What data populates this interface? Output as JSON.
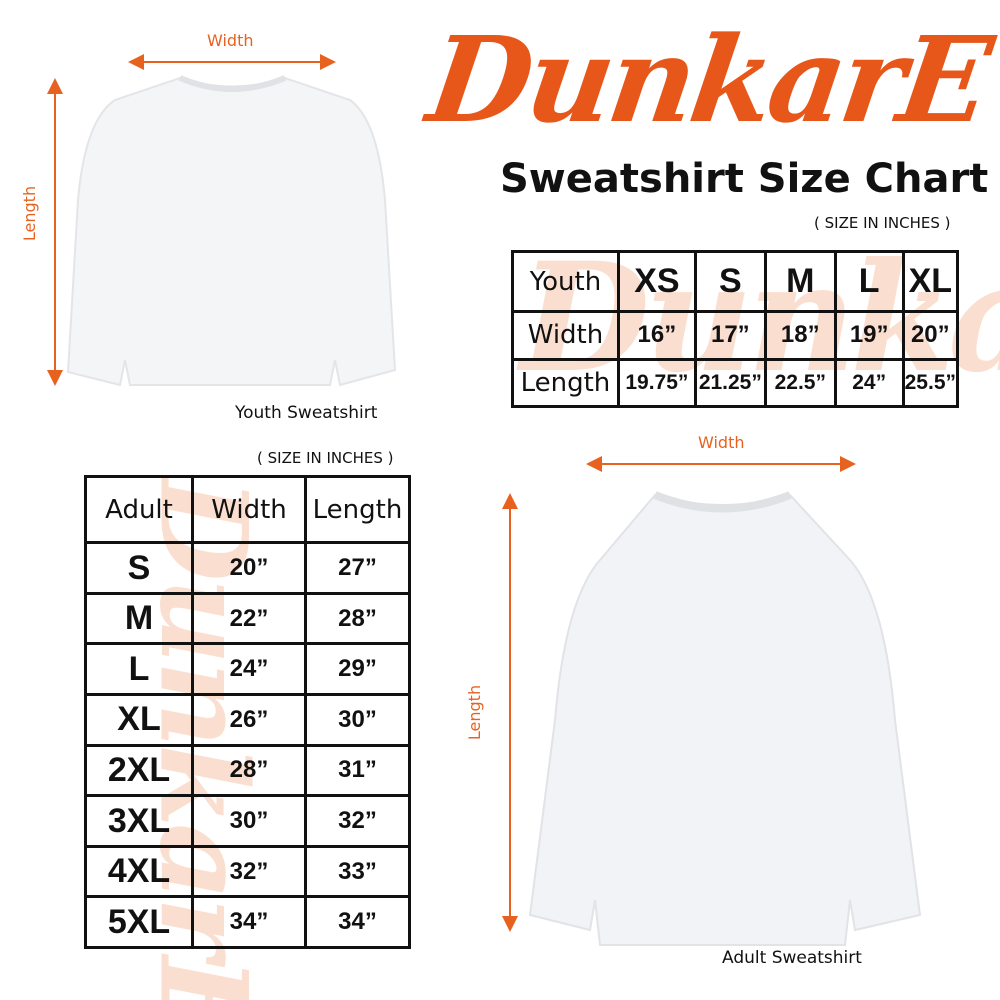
{
  "brand": {
    "logo_text": "DunkarE",
    "color": "#e8571a"
  },
  "title": "Sweatshirt Size Chart",
  "youth": {
    "units": "( SIZE IN INCHES )",
    "caption": "Youth Sweatshirt",
    "width_label": "Width",
    "length_label": "Length",
    "header": [
      "Youth",
      "XS",
      "S",
      "M",
      "L",
      "XL"
    ],
    "rows": [
      [
        "Width",
        "16”",
        "17”",
        "18”",
        "19”",
        "20”"
      ],
      [
        "Length",
        "19.75”",
        "21.25”",
        "22.5”",
        "24”",
        "25.5”"
      ]
    ]
  },
  "adult": {
    "units": "( SIZE IN INCHES )",
    "caption": "Adult Sweatshirt",
    "width_label": "Width",
    "length_label": "Length",
    "header": [
      "Adult",
      "Width",
      "Length"
    ],
    "rows": [
      [
        "S",
        "20”",
        "27”"
      ],
      [
        "M",
        "22”",
        "28”"
      ],
      [
        "L",
        "24”",
        "29”"
      ],
      [
        "XL",
        "26”",
        "30”"
      ],
      [
        "2XL",
        "28”",
        "31”"
      ],
      [
        "3XL",
        "30”",
        "32”"
      ],
      [
        "4XL",
        "32”",
        "33”"
      ],
      [
        "5XL",
        "34”",
        "34”"
      ]
    ]
  }
}
